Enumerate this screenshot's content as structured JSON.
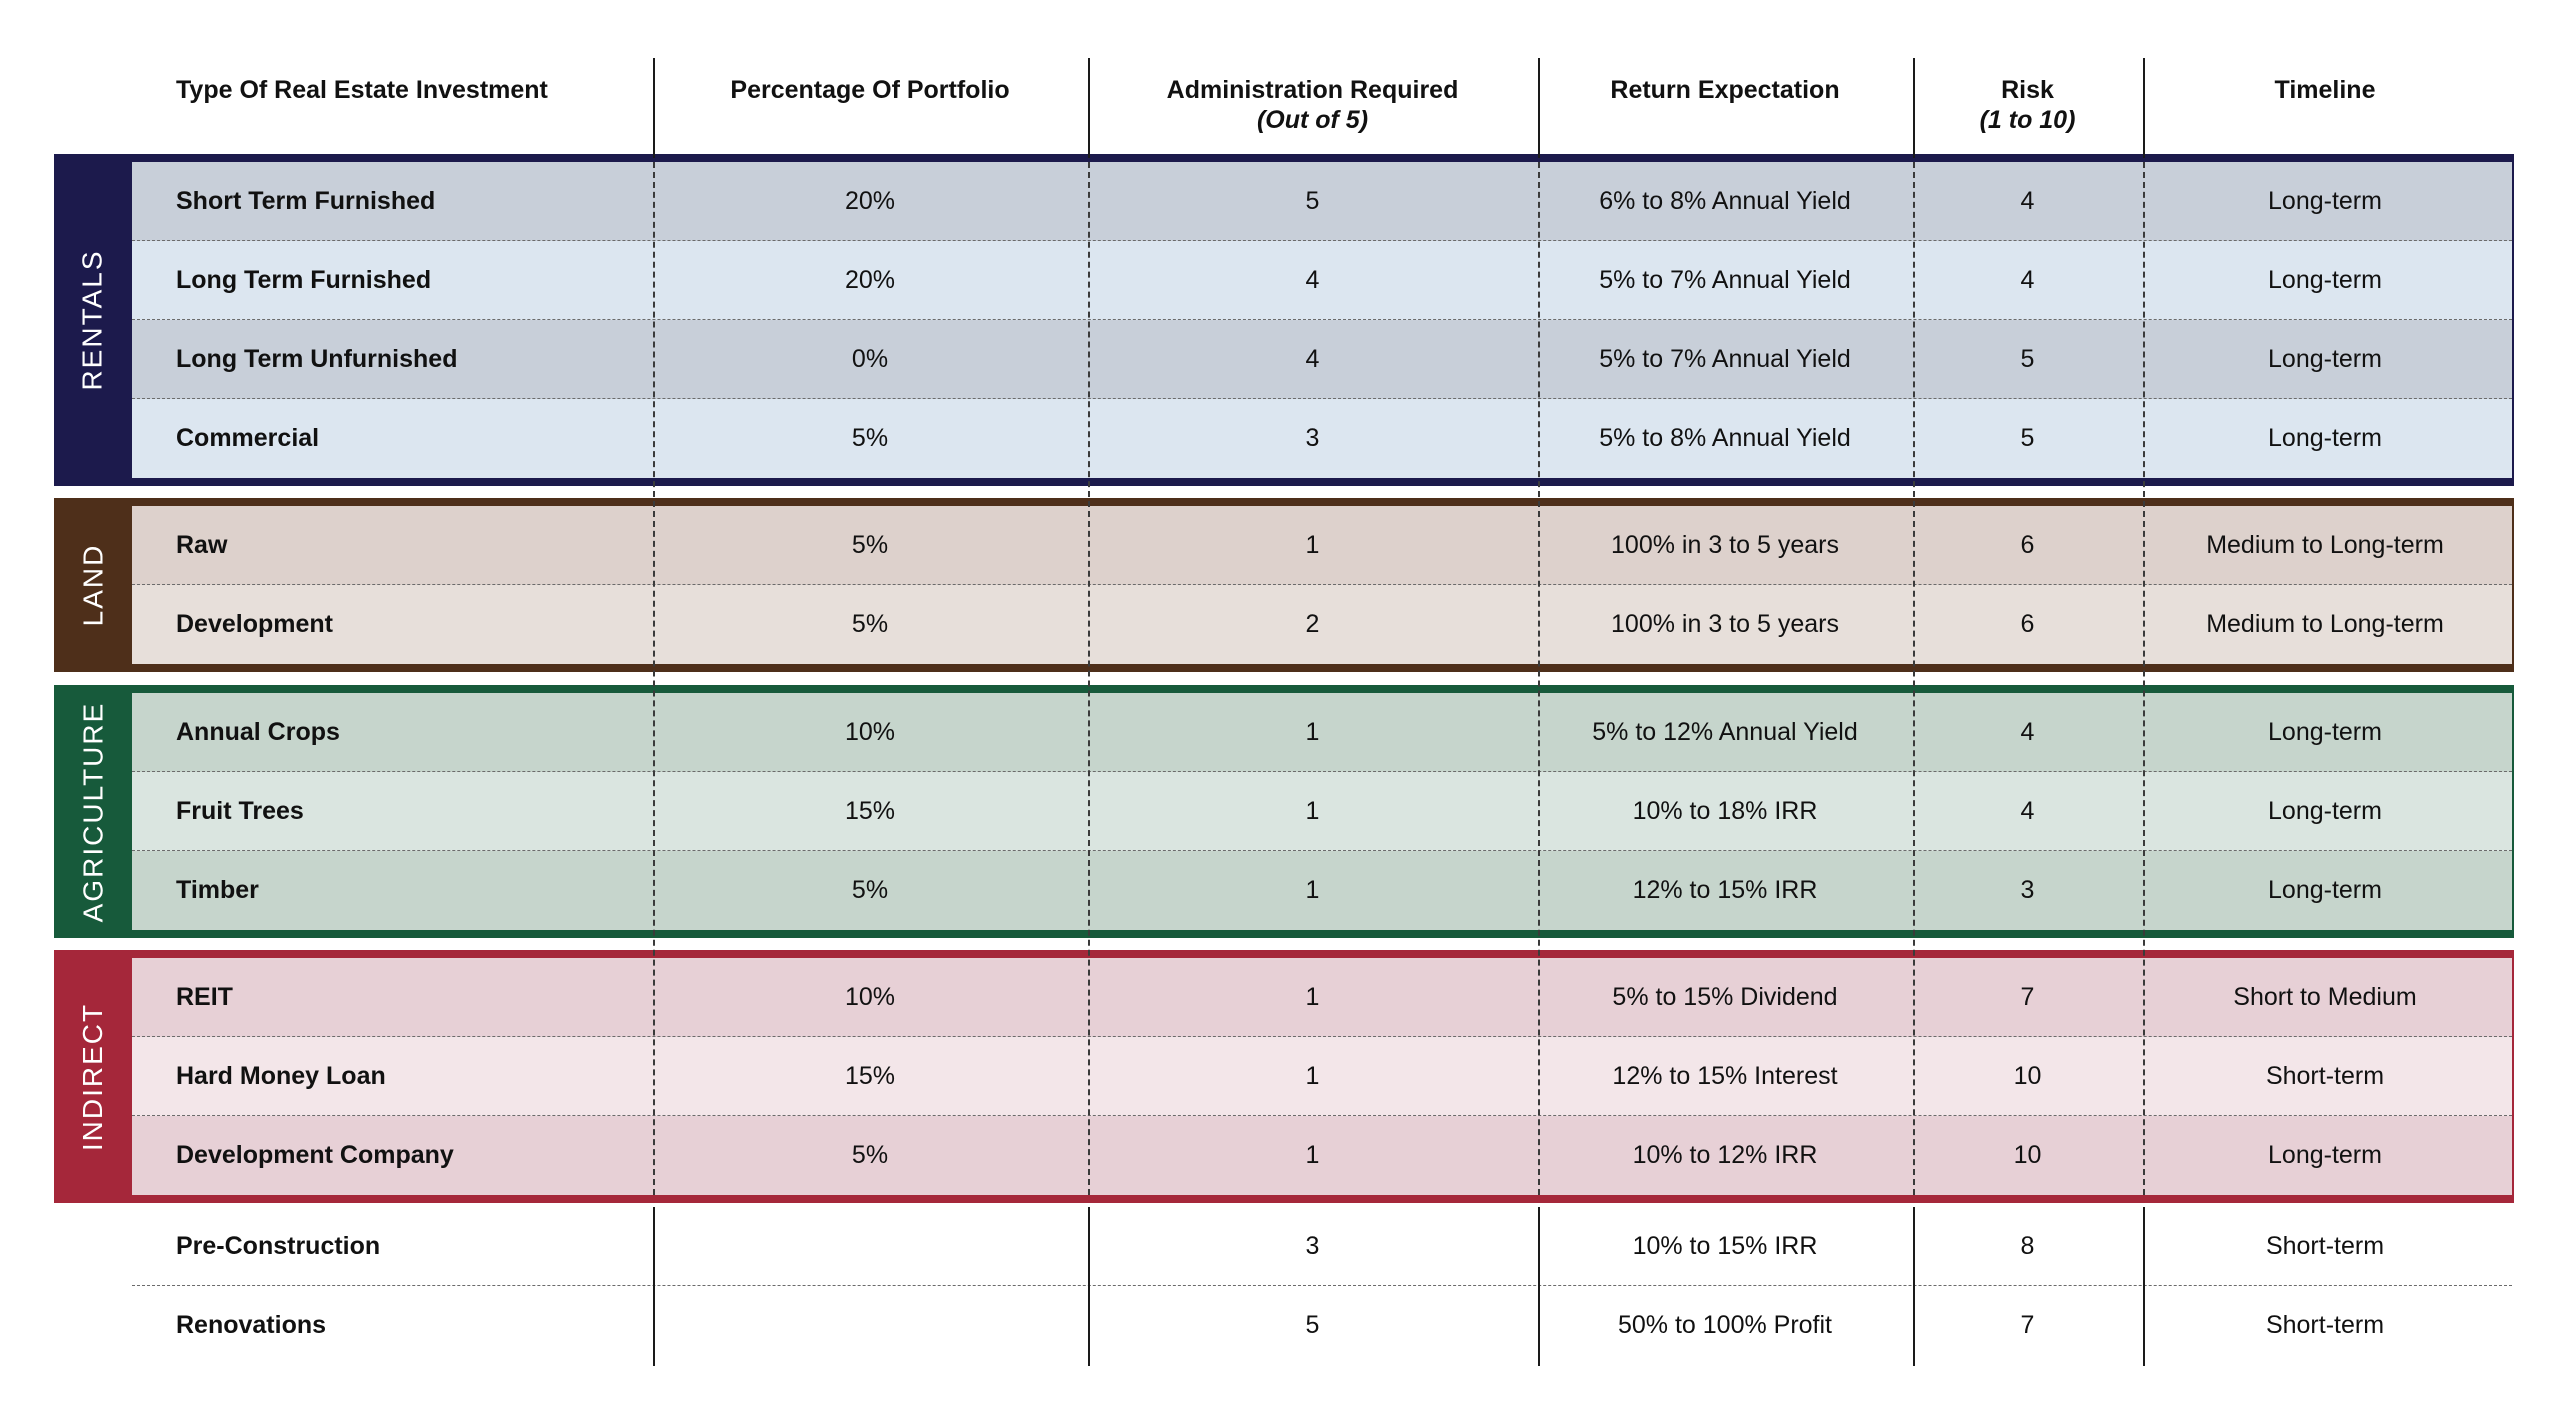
{
  "headers": [
    {
      "label": "Type Of Real Estate Investment",
      "sub": ""
    },
    {
      "label": "Percentage Of Portfolio",
      "sub": ""
    },
    {
      "label": "Administration Required",
      "sub": "(Out of 5)"
    },
    {
      "label": "Return Expectation",
      "sub": ""
    },
    {
      "label": "Risk",
      "sub": "(1 to 10)"
    },
    {
      "label": "Timeline",
      "sub": ""
    }
  ],
  "groups": [
    {
      "label": "RENTALS",
      "color": "#1c1a4c",
      "row_colors": [
        "#c8cfd9",
        "#dce6f0"
      ],
      "rows": [
        {
          "type": "Short Term Furnished",
          "percent": "20%",
          "admin": "5",
          "return": "6% to 8% Annual Yield",
          "risk": "4",
          "timeline": "Long-term"
        },
        {
          "type": "Long Term Furnished",
          "percent": "20%",
          "admin": "4",
          "return": "5% to 7% Annual Yield",
          "risk": "4",
          "timeline": "Long-term"
        },
        {
          "type": "Long Term Unfurnished",
          "percent": "0%",
          "admin": "4",
          "return": "5% to 7% Annual Yield",
          "risk": "5",
          "timeline": "Long-term"
        },
        {
          "type": "Commercial",
          "percent": "5%",
          "admin": "3",
          "return": "5% to 8% Annual Yield",
          "risk": "5",
          "timeline": "Long-term"
        }
      ]
    },
    {
      "label": "LAND",
      "color": "#4e2f1a",
      "row_colors": [
        "#ddd1cc",
        "#e7dfda"
      ],
      "rows": [
        {
          "type": "Raw",
          "percent": "5%",
          "admin": "1",
          "return": "100% in 3 to 5 years",
          "risk": "6",
          "timeline": "Medium to Long-term"
        },
        {
          "type": "Development",
          "percent": "5%",
          "admin": "2",
          "return": "100% in 3 to 5 years",
          "risk": "6",
          "timeline": "Medium to Long-term"
        }
      ]
    },
    {
      "label": "AGRICULTURE",
      "color": "#175a3b",
      "row_colors": [
        "#c6d5cc",
        "#dae5e0"
      ],
      "rows": [
        {
          "type": "Annual Crops",
          "percent": "10%",
          "admin": "1",
          "return": "5% to 12% Annual Yield",
          "risk": "4",
          "timeline": "Long-term"
        },
        {
          "type": "Fruit Trees",
          "percent": "15%",
          "admin": "1",
          "return": "10% to 18% IRR",
          "risk": "4",
          "timeline": "Long-term"
        },
        {
          "type": "Timber",
          "percent": "5%",
          "admin": "1",
          "return": "12% to 15% IRR",
          "risk": "3",
          "timeline": "Long-term"
        }
      ]
    },
    {
      "label": "INDIRECT",
      "color": "#a5273a",
      "row_colors": [
        "#e7d0d6",
        "#f3e6e9"
      ],
      "rows": [
        {
          "type": "REIT",
          "percent": "10%",
          "admin": "1",
          "return": "5% to 15% Dividend",
          "risk": "7",
          "timeline": "Short to Medium"
        },
        {
          "type": "Hard Money Loan",
          "percent": "15%",
          "admin": "1",
          "return": "12% to 15% Interest",
          "risk": "10",
          "timeline": "Short-term"
        },
        {
          "type": "Development Company",
          "percent": "5%",
          "admin": "1",
          "return": "10% to 12% IRR",
          "risk": "10",
          "timeline": "Long-term"
        }
      ]
    }
  ],
  "extra_rows": [
    {
      "type": "Pre-Construction",
      "percent": "",
      "admin": "3",
      "return": "10% to 15% IRR",
      "risk": "8",
      "timeline": "Short-term"
    },
    {
      "type": "Renovations",
      "percent": "",
      "admin": "5",
      "return": "50% to 100% Profit",
      "risk": "7",
      "timeline": "Short-term"
    }
  ]
}
